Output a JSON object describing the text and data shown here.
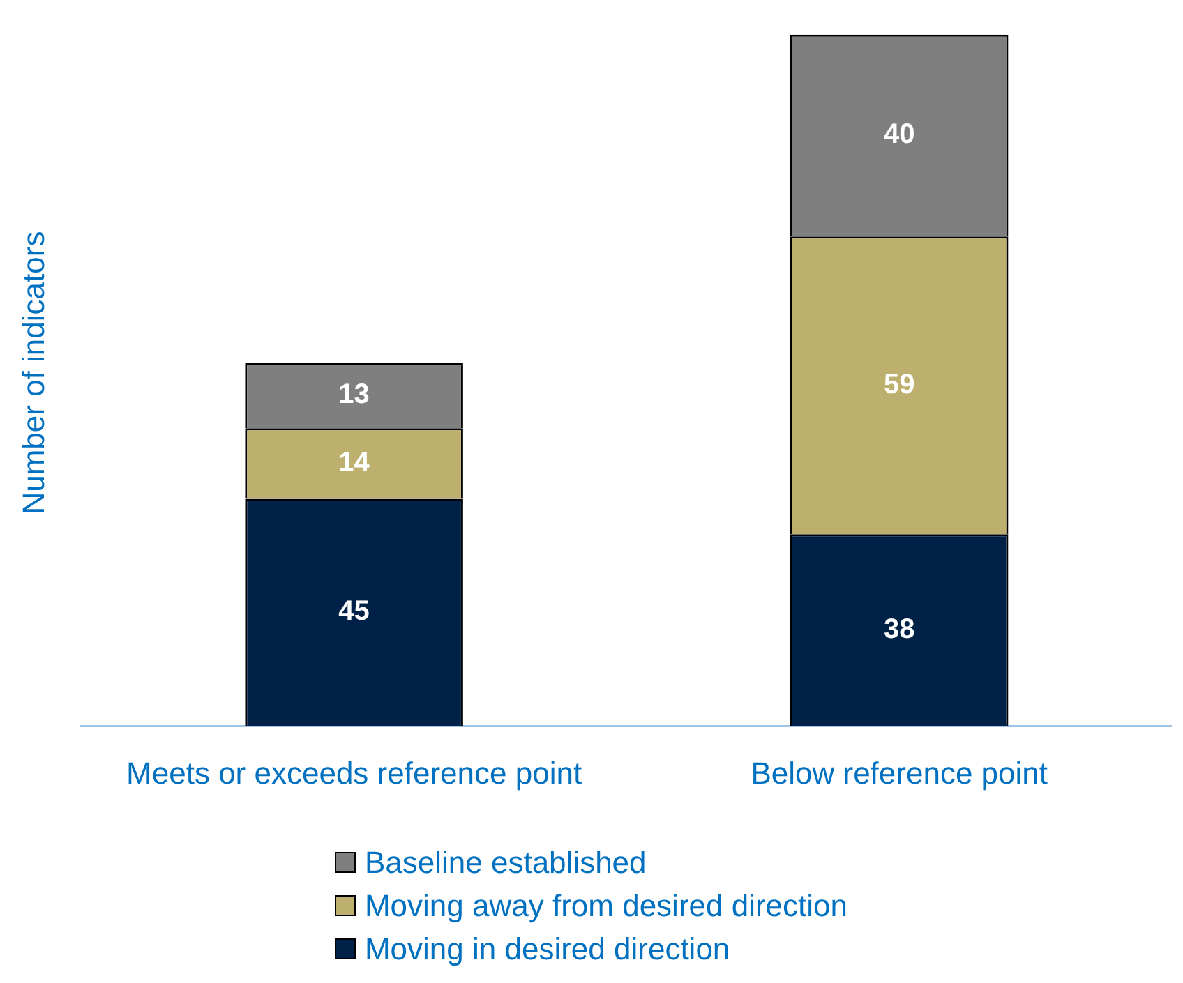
{
  "chart_data": {
    "type": "bar",
    "stacked": true,
    "ylabel": "Number of indicators",
    "categories": [
      "Meets or exceeds reference point",
      "Below reference point"
    ],
    "series": [
      {
        "name": "Moving in desired direction",
        "color": "#002147",
        "values": [
          45,
          38
        ]
      },
      {
        "name": "Moving away from desired direction",
        "color": "#bdb06e",
        "values": [
          14,
          59
        ]
      },
      {
        "name": "Baseline established",
        "color": "#7f7f7f",
        "values": [
          13,
          40
        ]
      }
    ],
    "data_labels": true,
    "legend": "bottom",
    "tick_labels": "x",
    "grid": false
  }
}
